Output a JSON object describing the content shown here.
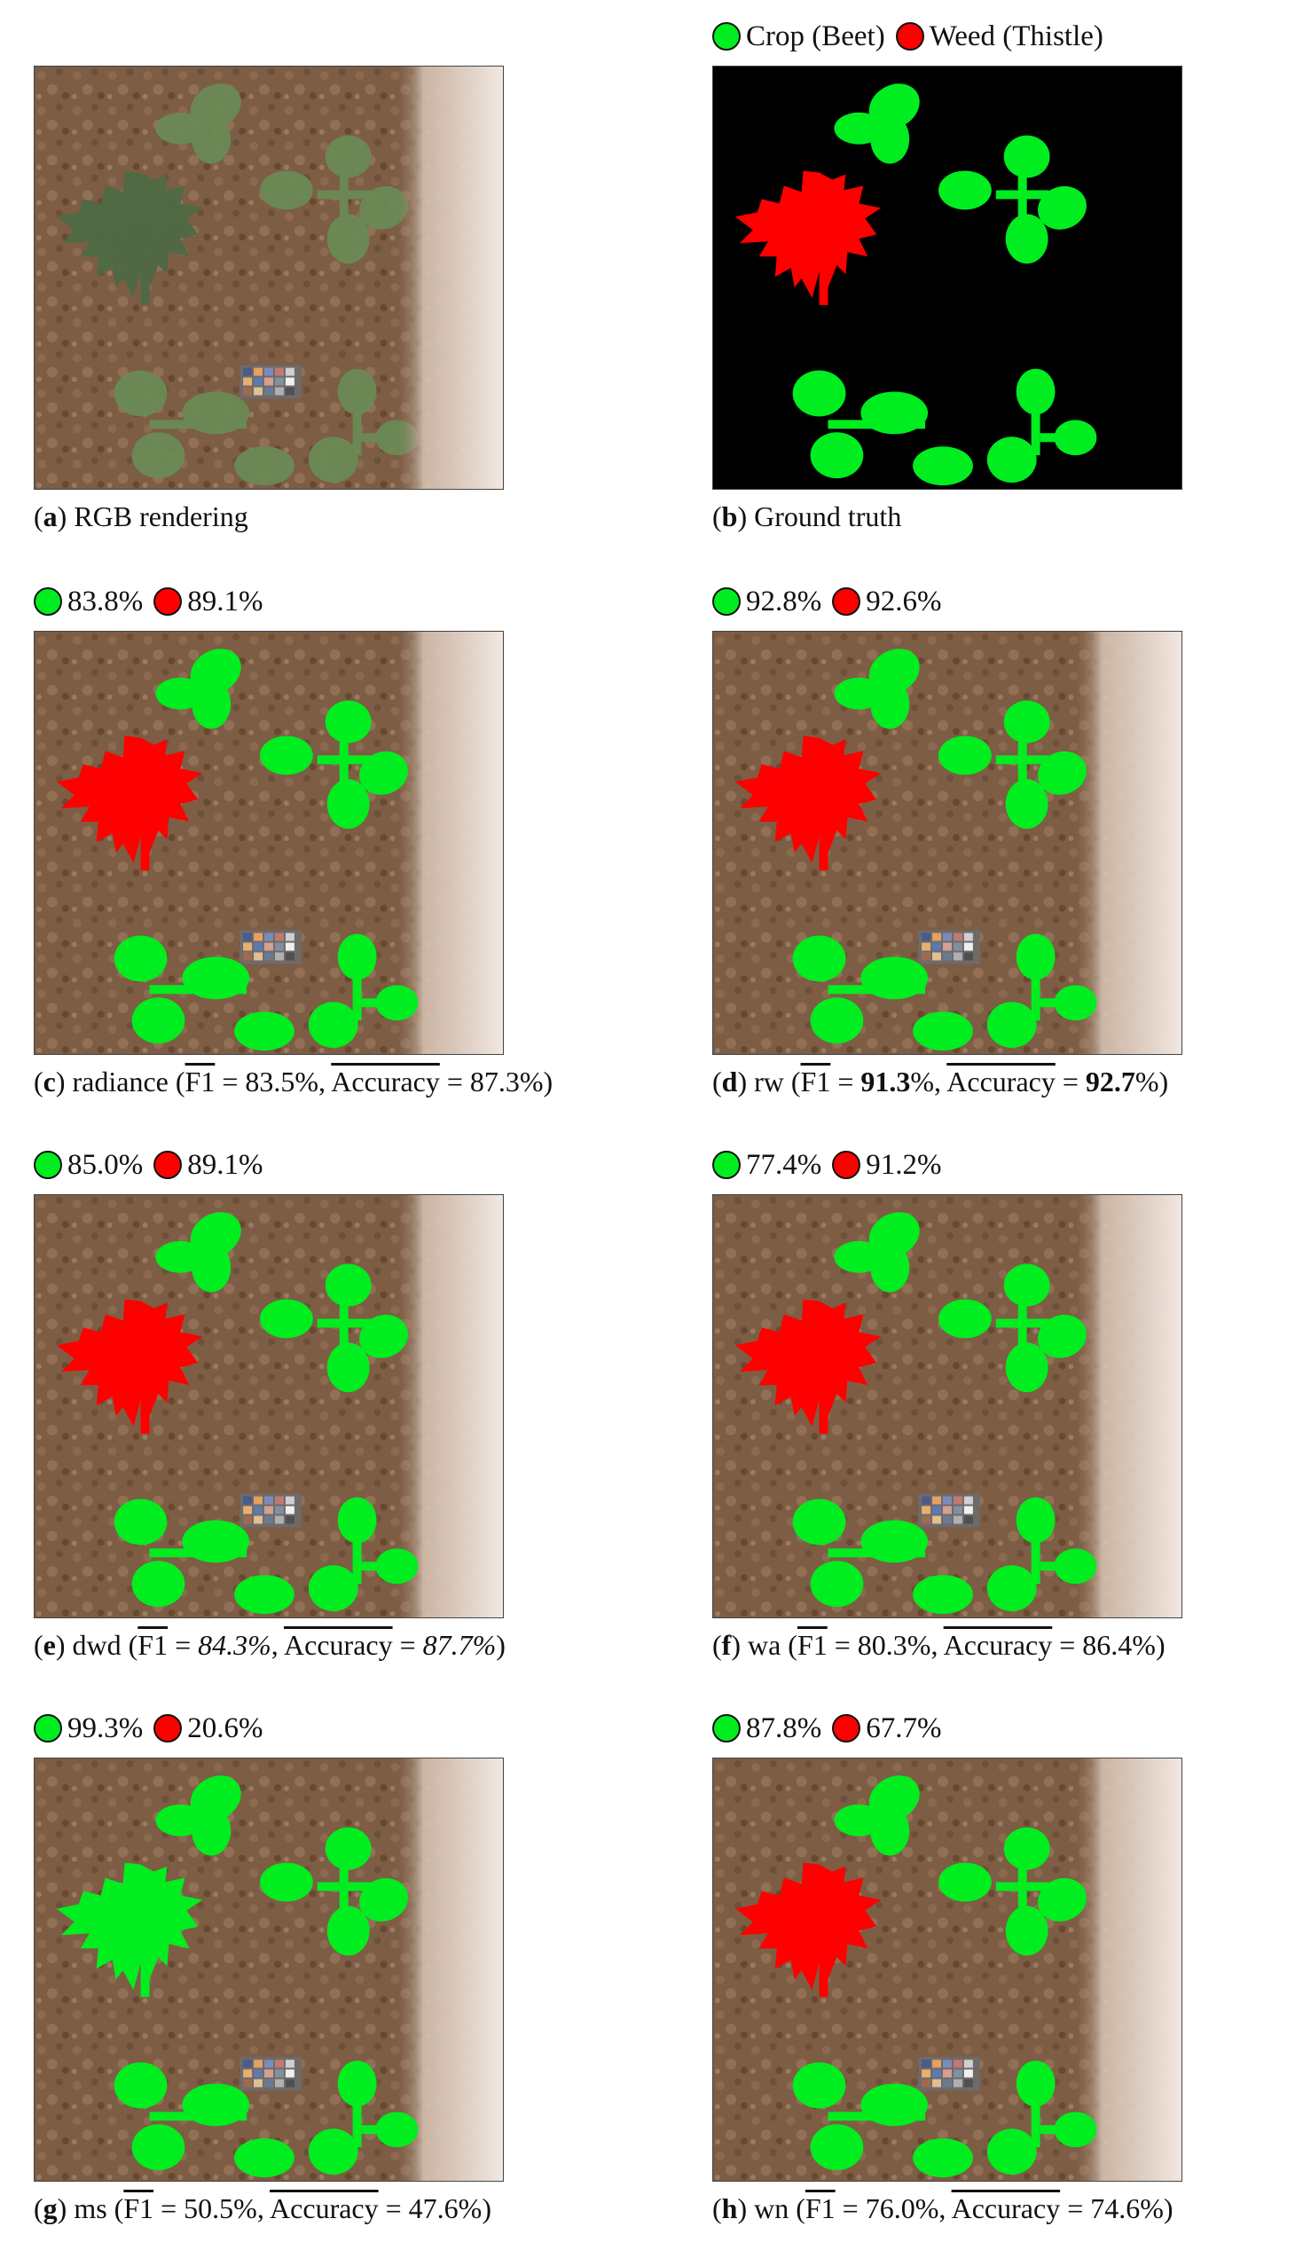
{
  "legend": {
    "crop": "Crop (Beet)",
    "weed": "Weed (Thistle)"
  },
  "colors": {
    "crop": "#00ee1f",
    "weed": "#ff0000",
    "background": "#000000"
  },
  "f1_label": "F1",
  "acc_label": "Accuracy",
  "panels": [
    {
      "letter": "a",
      "caption": "RGB rendering",
      "kind": "rgb"
    },
    {
      "letter": "b",
      "caption": "Ground truth",
      "kind": "gt"
    },
    {
      "letter": "c",
      "name": "radiance",
      "crop_pct": "83.8%",
      "weed_pct": "89.1%",
      "f1": "83.5%",
      "acc": "87.3%",
      "f1_style": "normal",
      "acc_style": "normal"
    },
    {
      "letter": "d",
      "name": "rw",
      "crop_pct": "92.8%",
      "weed_pct": "92.6%",
      "f1": "91.3",
      "acc": "92.7",
      "f1_style": "bold",
      "acc_style": "bold"
    },
    {
      "letter": "e",
      "name": "dwd",
      "crop_pct": "85.0%",
      "weed_pct": "89.1%",
      "f1": "84.3%",
      "acc": "87.7%",
      "f1_style": "italic",
      "acc_style": "italic"
    },
    {
      "letter": "f",
      "name": "wa",
      "crop_pct": "77.4%",
      "weed_pct": "91.2%",
      "f1": "80.3%",
      "acc": "86.4%",
      "f1_style": "normal",
      "acc_style": "normal"
    },
    {
      "letter": "g",
      "name": "ms",
      "crop_pct": "99.3%",
      "weed_pct": "20.6%",
      "f1": "50.5%",
      "acc": "47.6%",
      "f1_style": "normal",
      "acc_style": "normal"
    },
    {
      "letter": "h",
      "name": "wn",
      "crop_pct": "87.8%",
      "weed_pct": "67.7%",
      "f1": "76.0%",
      "acc": "74.6%",
      "f1_style": "normal",
      "acc_style": "normal"
    }
  ]
}
